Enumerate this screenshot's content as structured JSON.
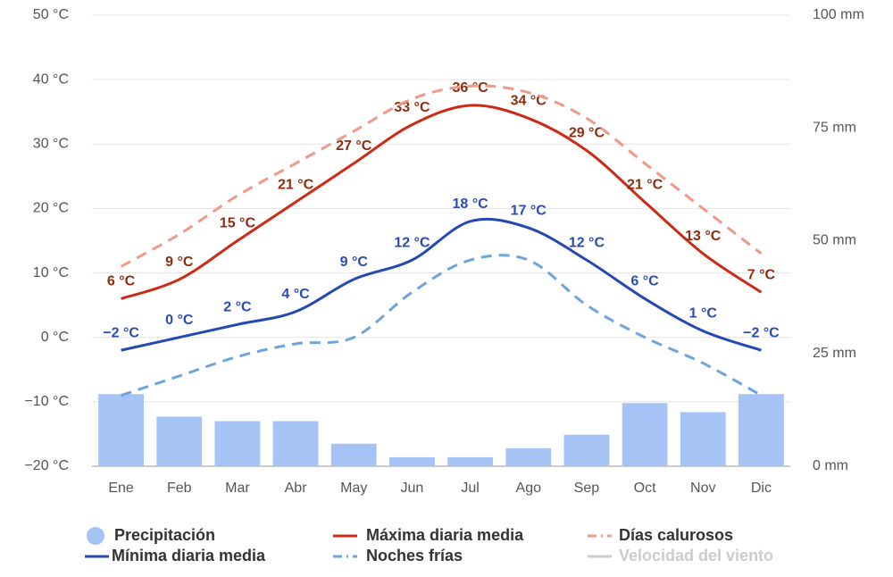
{
  "chart_data": {
    "type": "line",
    "categories": [
      "Ene",
      "Feb",
      "Mar",
      "Abr",
      "May",
      "Jun",
      "Jul",
      "Ago",
      "Sep",
      "Oct",
      "Nov",
      "Dic"
    ],
    "ylim": [
      -20,
      50
    ],
    "yticks": [
      {
        "value": -20,
        "label": "−20 °C"
      },
      {
        "value": -10,
        "label": "−10 °C"
      },
      {
        "value": 0,
        "label": "0 °C"
      },
      {
        "value": 10,
        "label": "10 °C"
      },
      {
        "value": 20,
        "label": "20 °C"
      },
      {
        "value": 30,
        "label": "30 °C"
      },
      {
        "value": 40,
        "label": "40 °C"
      },
      {
        "value": 50,
        "label": "50 °C"
      }
    ],
    "y2lim": [
      0,
      100
    ],
    "y2ticks": [
      {
        "value": 0,
        "label": "0 mm"
      },
      {
        "value": 25,
        "label": "25 mm"
      },
      {
        "value": 50,
        "label": "50 mm"
      },
      {
        "value": 75,
        "label": "75 mm"
      },
      {
        "value": 100,
        "label": "100 mm"
      }
    ],
    "grid": true,
    "legend": "bottom",
    "series": [
      {
        "name": "Precipitación",
        "type": "bar",
        "axis": "y2",
        "color": "#a5c3f5",
        "values": [
          16,
          11,
          10,
          10,
          5,
          2,
          2,
          4,
          7,
          14,
          12,
          16
        ]
      },
      {
        "name": "Máxima diaria media",
        "type": "line",
        "color": "#cc2a14",
        "label_color": "#8c2c10",
        "values": [
          6,
          9,
          15,
          21,
          27,
          33,
          36,
          34,
          29,
          21,
          13,
          7
        ],
        "value_labels": [
          "6 °C",
          "9 °C",
          "15 °C",
          "21 °C",
          "27 °C",
          "33 °C",
          "36 °C",
          "34 °C",
          "29 °C",
          "21 °C",
          "13 °C",
          "7 °C"
        ]
      },
      {
        "name": "Días calurosos",
        "type": "line",
        "dash": true,
        "color": "#ee9a88",
        "values": [
          11,
          16,
          22,
          27,
          32,
          37,
          39,
          38,
          34,
          27,
          20,
          13
        ]
      },
      {
        "name": "Mínima diaria media",
        "type": "line",
        "color": "#2448b4",
        "label_color": "#2a4cb0",
        "values": [
          -2,
          0,
          2,
          4,
          9,
          12,
          18,
          17,
          12,
          6,
          1,
          -2
        ],
        "value_labels": [
          "−2 °C",
          "0 °C",
          "2 °C",
          "4 °C",
          "9 °C",
          "12 °C",
          "18 °C",
          "17 °C",
          "12 °C",
          "6 °C",
          "1 °C",
          "−2 °C"
        ]
      },
      {
        "name": "Noches frías",
        "type": "line",
        "dash": true,
        "color": "#6ea4dc",
        "values": [
          -9,
          -6,
          -3,
          -1,
          0,
          7,
          12,
          12,
          5,
          0,
          -4,
          -9
        ]
      },
      {
        "name": "Velocidad del viento",
        "type": "line",
        "color": "#cccccc",
        "muted": true,
        "values": [
          null,
          null,
          null,
          null,
          null,
          null,
          null,
          null,
          null,
          null,
          null,
          null
        ]
      }
    ]
  }
}
